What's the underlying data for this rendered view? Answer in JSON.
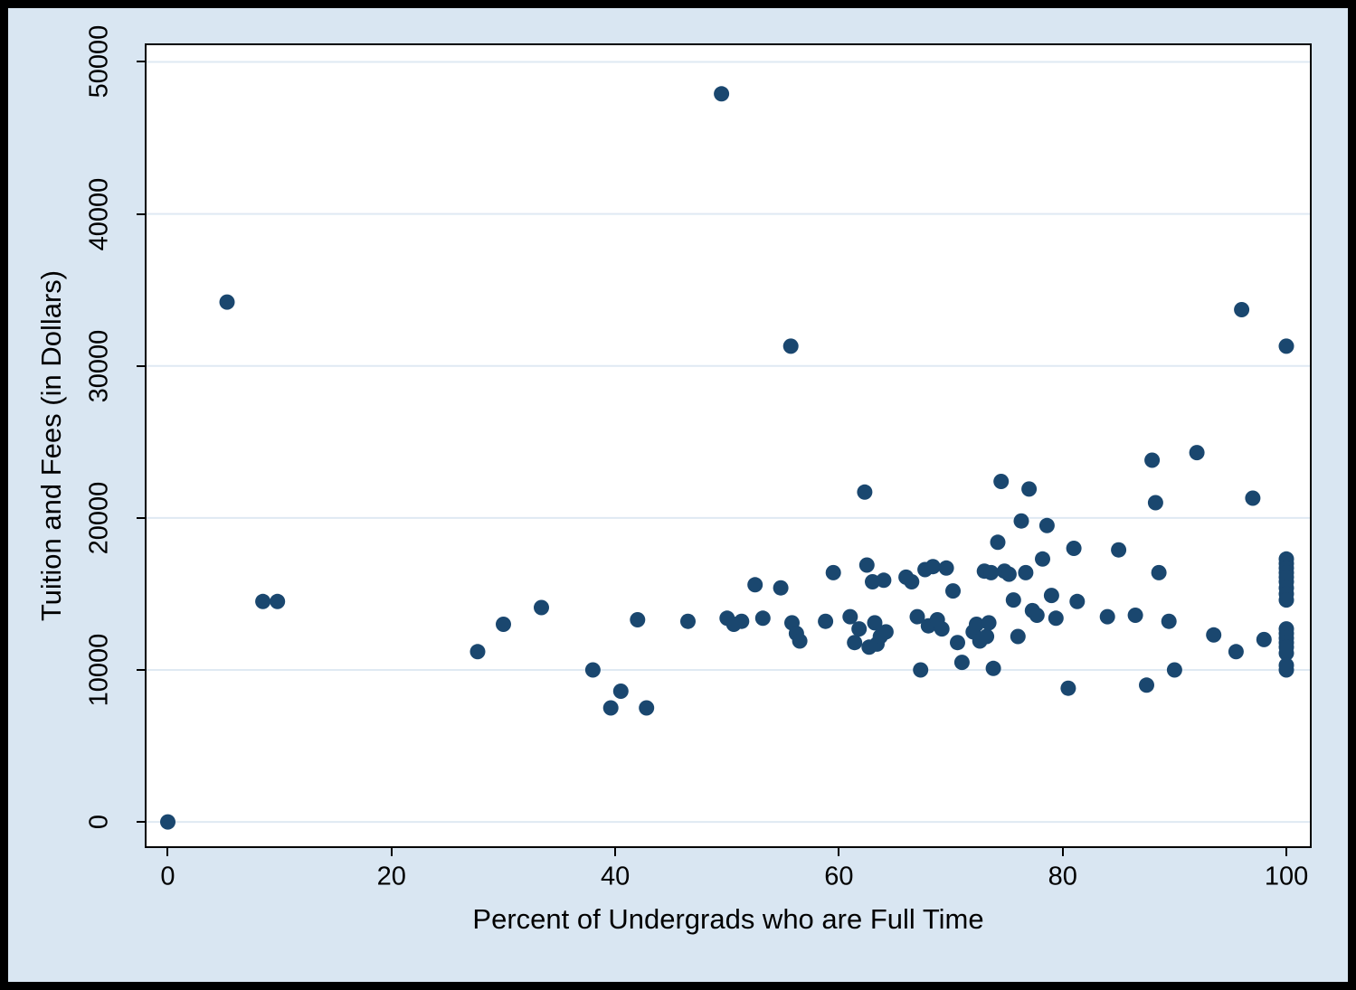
{
  "chart_data": {
    "type": "scatter",
    "title": "",
    "xlabel": "Percent of Undergrads who are Full Time",
    "ylabel": "Tuition and Fees (in Dollars)",
    "xlim": [
      -1.9,
      102.1
    ],
    "ylim": [
      -1600,
      51100
    ],
    "x_ticks": [
      0,
      20,
      40,
      60,
      80,
      100
    ],
    "x_tick_labels": [
      "0",
      "20",
      "40",
      "60",
      "80",
      "100"
    ],
    "y_ticks": [
      0,
      10000,
      20000,
      30000,
      40000,
      50000
    ],
    "y_tick_labels": [
      "0",
      "10000",
      "20000",
      "30000",
      "40000",
      "50000"
    ],
    "grid": "horizontal-gridlines",
    "legend": "none",
    "marker_color": "#1a476f",
    "graph_background": "#d9e6f2",
    "plot_background": "#ffffff",
    "gridline_color": "#dfe9f3",
    "points": [
      [
        0,
        0
      ],
      [
        5.3,
        34200
      ],
      [
        8.5,
        14500
      ],
      [
        9.8,
        14500
      ],
      [
        27.7,
        11200
      ],
      [
        30,
        13000
      ],
      [
        33.4,
        14100
      ],
      [
        38,
        10000
      ],
      [
        39.6,
        7500
      ],
      [
        40.5,
        8600
      ],
      [
        42,
        13300
      ],
      [
        42.8,
        7500
      ],
      [
        46.5,
        13200
      ],
      [
        49.5,
        47900
      ],
      [
        50,
        13400
      ],
      [
        50.6,
        13000
      ],
      [
        51.3,
        13200
      ],
      [
        52.5,
        15600
      ],
      [
        53.2,
        13400
      ],
      [
        54.8,
        15400
      ],
      [
        55.7,
        31300
      ],
      [
        55.8,
        13100
      ],
      [
        56.2,
        12400
      ],
      [
        56.5,
        11900
      ],
      [
        58.8,
        13200
      ],
      [
        59.5,
        16400
      ],
      [
        61,
        13500
      ],
      [
        61.4,
        11800
      ],
      [
        61.8,
        12700
      ],
      [
        62.3,
        21700
      ],
      [
        62.5,
        16900
      ],
      [
        62.7,
        11500
      ],
      [
        63,
        15800
      ],
      [
        63.2,
        13100
      ],
      [
        63.4,
        11700
      ],
      [
        63.7,
        12200
      ],
      [
        64,
        15900
      ],
      [
        64.2,
        12500
      ],
      [
        66,
        16100
      ],
      [
        66.5,
        15800
      ],
      [
        67,
        13500
      ],
      [
        67.3,
        10000
      ],
      [
        67.7,
        16600
      ],
      [
        68,
        12900
      ],
      [
        68.4,
        16800
      ],
      [
        68.8,
        13300
      ],
      [
        69.2,
        12700
      ],
      [
        69.6,
        16700
      ],
      [
        70.2,
        15200
      ],
      [
        70.6,
        11800
      ],
      [
        71,
        10500
      ],
      [
        72,
        12500
      ],
      [
        72.3,
        13000
      ],
      [
        72.6,
        11900
      ],
      [
        73,
        16500
      ],
      [
        73.2,
        12200
      ],
      [
        73.4,
        13100
      ],
      [
        73.6,
        16400
      ],
      [
        73.8,
        10100
      ],
      [
        74.2,
        18400
      ],
      [
        74.5,
        22400
      ],
      [
        74.8,
        16500
      ],
      [
        75.2,
        16300
      ],
      [
        75.6,
        14600
      ],
      [
        76,
        12200
      ],
      [
        76.3,
        19800
      ],
      [
        76.7,
        16400
      ],
      [
        77,
        21900
      ],
      [
        77.3,
        13900
      ],
      [
        77.7,
        13600
      ],
      [
        78.2,
        17300
      ],
      [
        78.6,
        19500
      ],
      [
        79,
        14900
      ],
      [
        79.4,
        13400
      ],
      [
        80.5,
        8800
      ],
      [
        81,
        18000
      ],
      [
        81.3,
        14500
      ],
      [
        84,
        13500
      ],
      [
        85,
        17900
      ],
      [
        86.5,
        13600
      ],
      [
        87.5,
        9000
      ],
      [
        88,
        23800
      ],
      [
        88.3,
        21000
      ],
      [
        88.6,
        16400
      ],
      [
        89.5,
        13200
      ],
      [
        90,
        10000
      ],
      [
        92,
        24300
      ],
      [
        93.5,
        12300
      ],
      [
        95.5,
        11200
      ],
      [
        96,
        33700
      ],
      [
        97,
        21300
      ],
      [
        98,
        12000
      ],
      [
        100,
        31300
      ],
      [
        100,
        17300
      ],
      [
        100,
        17000
      ],
      [
        100,
        16700
      ],
      [
        100,
        16400
      ],
      [
        100,
        16100
      ],
      [
        100,
        15800
      ],
      [
        100,
        15400
      ],
      [
        100,
        15000
      ],
      [
        100,
        14600
      ],
      [
        100,
        12700
      ],
      [
        100,
        12400
      ],
      [
        100,
        12100
      ],
      [
        100,
        11800
      ],
      [
        100,
        11500
      ],
      [
        100,
        11100
      ],
      [
        100,
        10300
      ],
      [
        100,
        10000
      ]
    ]
  }
}
